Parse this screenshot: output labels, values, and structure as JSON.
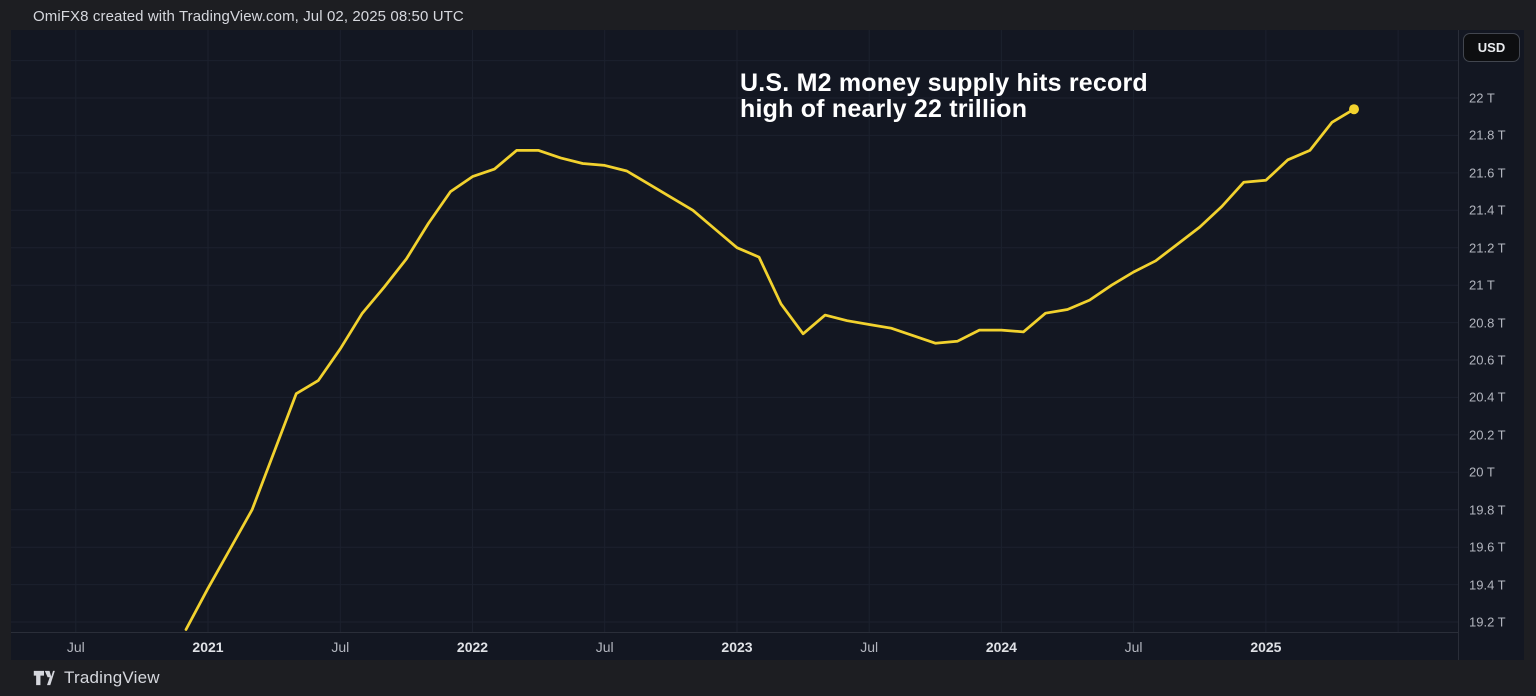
{
  "header": {
    "attribution": "OmiFX8 created with TradingView.com, Jul 02, 2025 08:50 UTC"
  },
  "annotation": {
    "line1": "U.S. M2 money supply hits record",
    "line2": "high of nearly 22 trillion"
  },
  "price_axis": {
    "currency_button": "USD",
    "ticks": [
      {
        "label": "22 T",
        "value": 22.0
      },
      {
        "label": "21.8 T",
        "value": 21.8
      },
      {
        "label": "21.6 T",
        "value": 21.6
      },
      {
        "label": "21.4 T",
        "value": 21.4
      },
      {
        "label": "21.2 T",
        "value": 21.2
      },
      {
        "label": "21 T",
        "value": 21.0
      },
      {
        "label": "20.8 T",
        "value": 20.8
      },
      {
        "label": "20.6 T",
        "value": 20.6
      },
      {
        "label": "20.4 T",
        "value": 20.4
      },
      {
        "label": "20.2 T",
        "value": 20.2
      },
      {
        "label": "20 T",
        "value": 20.0
      },
      {
        "label": "19.8 T",
        "value": 19.8
      },
      {
        "label": "19.6 T",
        "value": 19.6
      },
      {
        "label": "19.4 T",
        "value": 19.4
      },
      {
        "label": "19.2 T",
        "value": 19.2
      }
    ],
    "gridline_values": [
      22.2,
      22.0,
      21.8,
      21.6,
      21.4,
      21.2,
      21.0,
      20.8,
      20.6,
      20.4,
      20.2,
      20.0,
      19.8,
      19.6,
      19.4,
      19.2
    ]
  },
  "time_axis": {
    "ticks": [
      {
        "label": "Jul",
        "bold": false,
        "month_offset": -5
      },
      {
        "label": "2021",
        "bold": true,
        "month_offset": 1
      },
      {
        "label": "Jul",
        "bold": false,
        "month_offset": 7
      },
      {
        "label": "2022",
        "bold": true,
        "month_offset": 13
      },
      {
        "label": "Jul",
        "bold": false,
        "month_offset": 19
      },
      {
        "label": "2023",
        "bold": true,
        "month_offset": 25
      },
      {
        "label": "Jul",
        "bold": false,
        "month_offset": 31
      },
      {
        "label": "2024",
        "bold": true,
        "month_offset": 37
      },
      {
        "label": "Jul",
        "bold": false,
        "month_offset": 43
      },
      {
        "label": "2025",
        "bold": true,
        "month_offset": 49
      }
    ],
    "extra_gridline_month_offsets": [
      55
    ]
  },
  "footer": {
    "brand": "TradingView"
  },
  "colors": {
    "line": "#F2D22E",
    "chart_bg": "#131722",
    "outer_bg": "#1D1E22",
    "grid": "#1C212E",
    "border": "#2A2E39",
    "axis_text": "#B2B5BE",
    "title_text": "#FFFFFF"
  },
  "chart_data": {
    "type": "line",
    "title": "U.S. M2 money supply hits record high of nearly 22 trillion",
    "series_name": "U.S. M2 money supply",
    "unit": "USD trillions",
    "x_interval": "monthly",
    "months": [
      "2020-12",
      "2021-01",
      "2021-02",
      "2021-03",
      "2021-04",
      "2021-05",
      "2021-06",
      "2021-07",
      "2021-08",
      "2021-09",
      "2021-10",
      "2021-11",
      "2021-12",
      "2022-01",
      "2022-02",
      "2022-03",
      "2022-04",
      "2022-05",
      "2022-06",
      "2022-07",
      "2022-08",
      "2022-09",
      "2022-10",
      "2022-11",
      "2022-12",
      "2023-01",
      "2023-02",
      "2023-03",
      "2023-04",
      "2023-05",
      "2023-06",
      "2023-07",
      "2023-08",
      "2023-09",
      "2023-10",
      "2023-11",
      "2023-12",
      "2024-01",
      "2024-02",
      "2024-03",
      "2024-04",
      "2024-05",
      "2024-06",
      "2024-07",
      "2024-08",
      "2024-09",
      "2024-10",
      "2024-11",
      "2024-12",
      "2025-01",
      "2025-02",
      "2025-03",
      "2025-04",
      "2025-05"
    ],
    "values": [
      19.16,
      19.38,
      19.59,
      19.8,
      20.11,
      20.42,
      20.49,
      20.66,
      20.85,
      20.99,
      21.14,
      21.33,
      21.5,
      21.58,
      21.62,
      21.72,
      21.72,
      21.68,
      21.65,
      21.64,
      21.61,
      21.54,
      21.47,
      21.4,
      21.3,
      21.2,
      21.15,
      20.9,
      20.74,
      20.84,
      20.81,
      20.79,
      20.77,
      20.73,
      20.69,
      20.7,
      20.76,
      20.76,
      20.75,
      20.85,
      20.87,
      20.92,
      21.0,
      21.07,
      21.13,
      21.22,
      21.31,
      21.42,
      21.55,
      21.56,
      21.67,
      21.72,
      21.87,
      21.94
    ],
    "ylim": [
      19.15,
      22.36
    ],
    "y_tick_step": 0.2,
    "grid": true,
    "legend": "none",
    "last_point_marker": true,
    "line_color": "#F2D22E"
  }
}
